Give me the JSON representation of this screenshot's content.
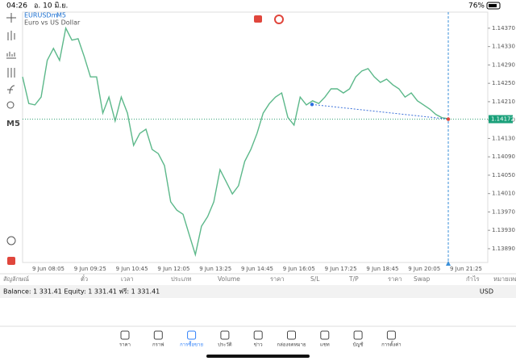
{
  "status_bar": {
    "time": "04:26",
    "date": "อ. 10 มิ.ย.",
    "battery": "76%"
  },
  "chart": {
    "symbol": "EURUSDm",
    "timeframe": "M5",
    "description": "Euro vs US Dollar",
    "toolbar_timeframe": "M5",
    "prices": [
      1.14264,
      1.14206,
      1.14203,
      1.1422,
      1.143,
      1.14326,
      1.143,
      1.1437,
      1.14344,
      1.14347,
      1.14308,
      1.14264,
      1.14264,
      1.14185,
      1.1422,
      1.14168,
      1.1422,
      1.14185,
      1.14115,
      1.14141,
      1.1415,
      1.14106,
      1.14097,
      1.14071,
      1.13992,
      1.13974,
      1.13965,
      1.13921,
      1.13877,
      1.13939,
      1.1396,
      1.13992,
      1.14062,
      1.14036,
      1.14009,
      1.14027,
      1.1408,
      1.14106,
      1.14141,
      1.14185,
      1.14206,
      1.1422,
      1.14229,
      1.14176,
      1.14159,
      1.1422,
      1.14203,
      1.14212,
      1.14206,
      1.1422,
      1.14238,
      1.14238,
      1.14229,
      1.14238,
      1.14264,
      1.14277,
      1.14282,
      1.14264,
      1.14252,
      1.14259,
      1.14247,
      1.14238,
      1.1422,
      1.14229,
      1.14212,
      1.14203,
      1.14194,
      1.14182,
      1.14175,
      1.14173
    ],
    "color": "#5cb88a",
    "ylim": [
      1.1386,
      1.14405
    ],
    "yticks": [
      {
        "value": 1.1437,
        "label": "1.14370"
      },
      {
        "value": 1.1433,
        "label": "1.14330"
      },
      {
        "value": 1.1429,
        "label": "1.14290"
      },
      {
        "value": 1.1425,
        "label": "1.14250"
      },
      {
        "value": 1.1421,
        "label": "1.14210"
      },
      {
        "value": 1.1417,
        "label": "1.14170"
      },
      {
        "value": 1.1413,
        "label": "1.14130"
      },
      {
        "value": 1.1409,
        "label": "1.14090"
      },
      {
        "value": 1.1405,
        "label": "1.14050"
      },
      {
        "value": 1.1401,
        "label": "1.14010"
      },
      {
        "value": 1.1397,
        "label": "1.13970"
      },
      {
        "value": 1.1393,
        "label": "1.13930"
      },
      {
        "value": 1.1389,
        "label": "1.13890"
      }
    ],
    "current_price": 1.14172,
    "trendline": [
      1.14204,
      1.14172
    ],
    "xticks": [
      "9 Jun 08:05",
      "9 Jun 09:25",
      "9 Jun 10:45",
      "9 Jun 12:05",
      "9 Jun 13:25",
      "9 Jun 14:45",
      "9 Jun 16:05",
      "9 Jun 17:25",
      "9 Jun 18:45",
      "9 Jun 20:05",
      "9 Jun 21:25"
    ]
  },
  "table": {
    "headers": [
      "สัญลักษณ์",
      "ตั๋ว",
      "เวลา",
      "ประเภท",
      "Volume",
      "ราคา",
      "S/L",
      "T/P",
      "ราคา",
      "Swap",
      "กำไร",
      "หมายเหตุ"
    ],
    "balance": "Balance: 1 331.41 Equity: 1 331.41 ฟรี: 1 331.41",
    "currency": "USD"
  },
  "tabs": {
    "items": [
      "ราคา",
      "กราฟ",
      "การซื้อขาย",
      "ประวัติ",
      "ข่าว",
      "กล่องจดหมาย",
      "แชท",
      "บัญชี",
      "การตั้งค่า"
    ],
    "active": 2
  }
}
